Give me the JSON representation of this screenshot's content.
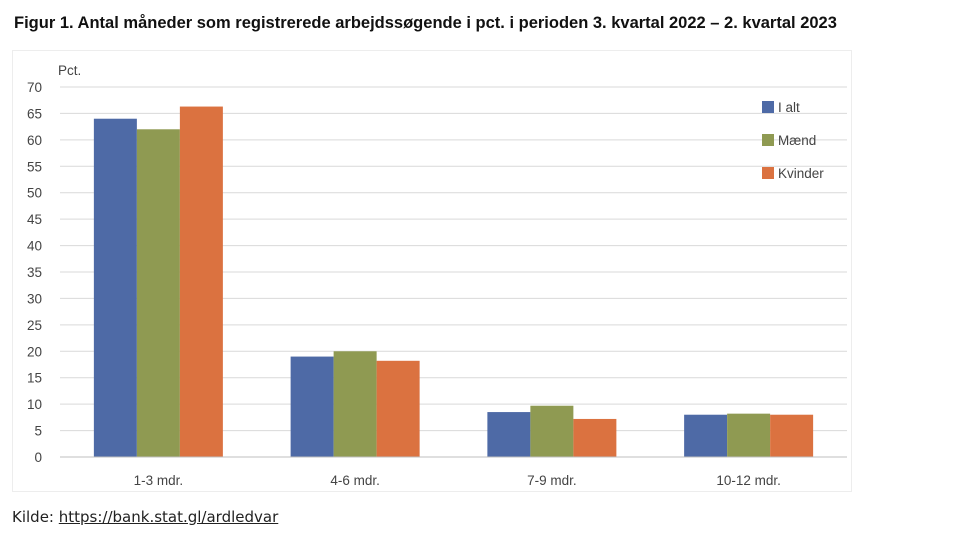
{
  "title": "Figur 1. Antal måneder som registrerede arbejdssøgende i pct. i perioden 3. kvartal 2022 – 2. kvartal 2023",
  "source": {
    "label": "Kilde:",
    "link_text": "https://bank.stat.gl/ardledvar"
  },
  "chart_data": {
    "type": "bar",
    "title": "Figur 1. Antal måneder som registrerede arbejdssøgende i pct. i perioden 3. kvartal 2022 – 2. kvartal 2023",
    "ylabel": "Pct.",
    "xlabel": "",
    "ylim": [
      0,
      70
    ],
    "yticks": [
      0,
      5,
      10,
      15,
      20,
      25,
      30,
      35,
      40,
      45,
      50,
      55,
      60,
      65,
      70
    ],
    "grid": true,
    "legend_position": "top-right",
    "categories": [
      "1-3 mdr.",
      "4-6 mdr.",
      "7-9 mdr.",
      "10-12 mdr."
    ],
    "series": [
      {
        "name": "I alt",
        "color": "#4e6aa6",
        "values": [
          64,
          19,
          8.5,
          8
        ]
      },
      {
        "name": "Mænd",
        "color": "#8f9a52",
        "values": [
          62,
          20,
          9.7,
          8.2
        ]
      },
      {
        "name": "Kvinder",
        "color": "#db7240",
        "values": [
          66.3,
          18.2,
          7.2,
          8
        ]
      }
    ]
  }
}
